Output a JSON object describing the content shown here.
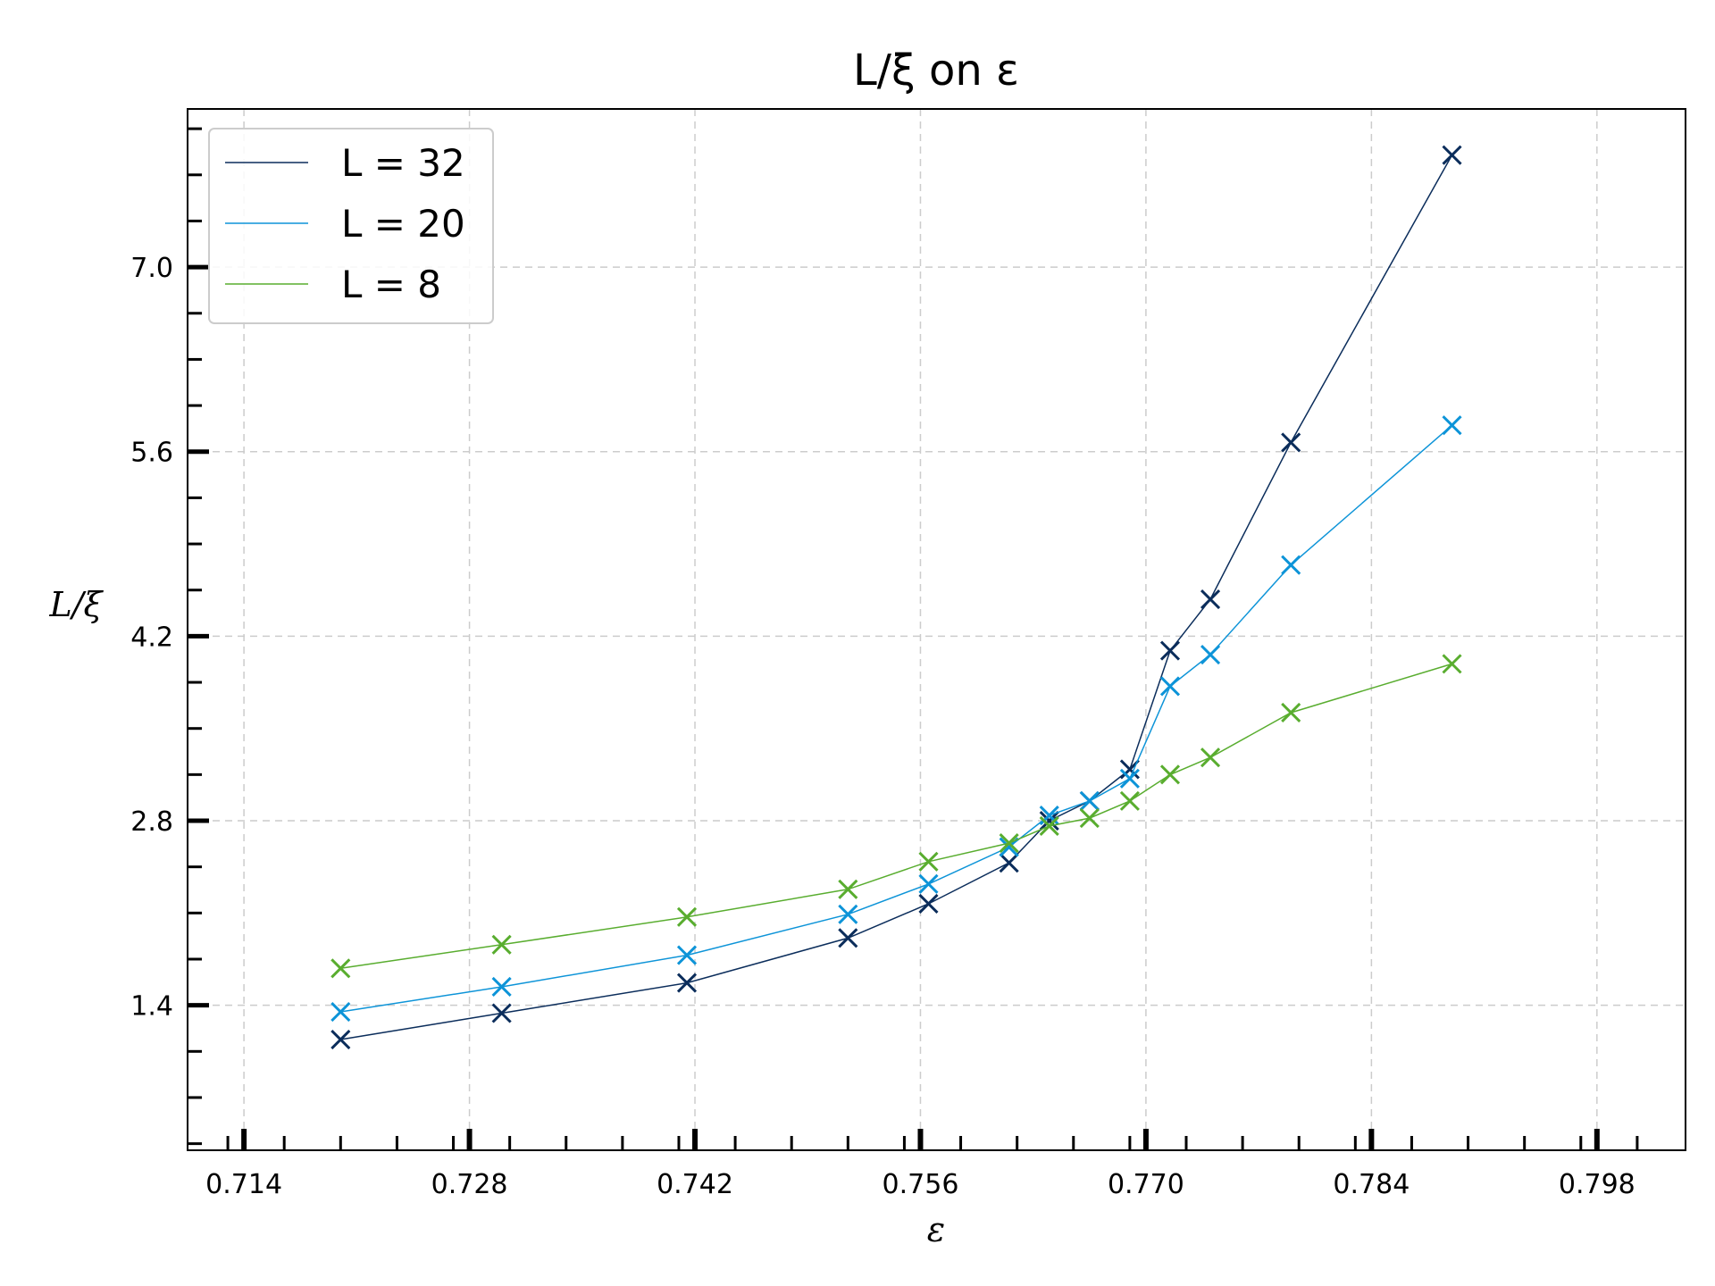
{
  "chart_data": {
    "type": "line",
    "title": "L/ξ on ε",
    "xlabel": "ε",
    "ylabel": "L/ξ",
    "xlim": [
      0.7105,
      0.8035
    ],
    "ylim": [
      0.3,
      8.2
    ],
    "xticks": [
      "0.714",
      "0.728",
      "0.742",
      "0.756",
      "0.770",
      "0.784",
      "0.798"
    ],
    "yticks": [
      "1.4",
      "2.8",
      "4.2",
      "5.6",
      "7.0"
    ],
    "grid": true,
    "legend_position": "top-left",
    "marker": "x",
    "series": [
      {
        "name": "L = 32",
        "color": "#0b2d5b",
        "x": [
          0.72,
          0.73,
          0.7415,
          0.7515,
          0.7565,
          0.7615,
          0.764,
          0.7665,
          0.769,
          0.7715,
          0.774,
          0.779,
          0.789
        ],
        "y": [
          1.14,
          1.34,
          1.57,
          1.91,
          2.17,
          2.48,
          2.8,
          2.95,
          3.19,
          4.09,
          4.48,
          5.67,
          7.85
        ]
      },
      {
        "name": "L = 20",
        "color": "#0d94d8",
        "x": [
          0.72,
          0.73,
          0.7415,
          0.7515,
          0.7565,
          0.7615,
          0.764,
          0.7665,
          0.769,
          0.7715,
          0.774,
          0.779,
          0.789
        ],
        "y": [
          1.35,
          1.54,
          1.78,
          2.09,
          2.32,
          2.6,
          2.84,
          2.95,
          3.12,
          3.82,
          4.06,
          4.74,
          5.8
        ]
      },
      {
        "name": "L = 8",
        "color": "#59ad2f",
        "x": [
          0.72,
          0.73,
          0.7415,
          0.7515,
          0.7565,
          0.7615,
          0.764,
          0.7665,
          0.769,
          0.7715,
          0.774,
          0.779,
          0.789
        ],
        "y": [
          1.68,
          1.86,
          2.07,
          2.28,
          2.49,
          2.63,
          2.76,
          2.82,
          2.95,
          3.15,
          3.28,
          3.62,
          3.99
        ]
      }
    ]
  }
}
